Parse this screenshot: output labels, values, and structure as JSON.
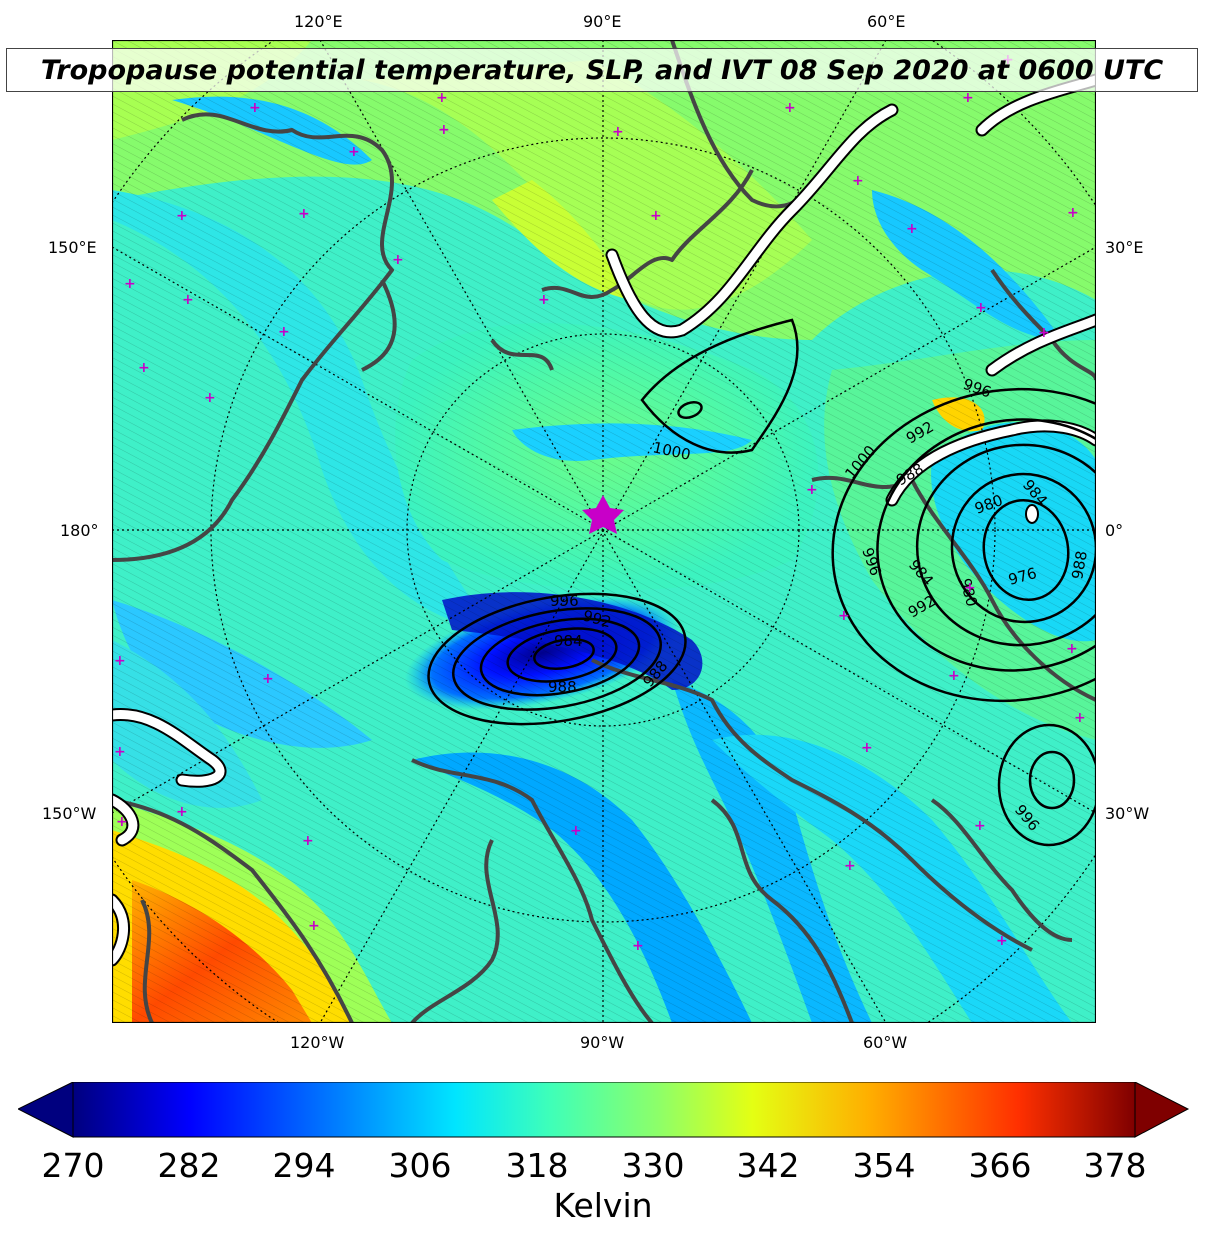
{
  "title": "Tropopause potential temperature, SLP, and IVT 08 Sep 2020 at 0600 UTC",
  "axes": {
    "top_labels": [
      "120°E",
      "90°E",
      "60°E"
    ],
    "bottom_labels": [
      "120°W",
      "90°W",
      "60°W"
    ],
    "left_labels": [
      "150°E",
      "180°",
      "150°W"
    ],
    "right_labels": [
      "30°E",
      "0°",
      "30°W"
    ]
  },
  "colorbar": {
    "ticks": [
      "270",
      "282",
      "294",
      "306",
      "318",
      "330",
      "342",
      "354",
      "366",
      "378"
    ],
    "label": "Kelvin",
    "min": 270,
    "max": 378,
    "colormap": [
      "#00007f",
      "#0000ff",
      "#007fff",
      "#00e5ff",
      "#3fffb8",
      "#8cff6a",
      "#e4ff13",
      "#ffae00",
      "#ff3000",
      "#7f0000"
    ]
  },
  "slp_contour_labels": [
    "1000",
    "1000",
    "996",
    "996",
    "996",
    "996",
    "992",
    "992",
    "992",
    "988",
    "988",
    "988",
    "988",
    "984",
    "984",
    "984",
    "980",
    "980",
    "976",
    "1000"
  ],
  "marker": "pole-star"
}
